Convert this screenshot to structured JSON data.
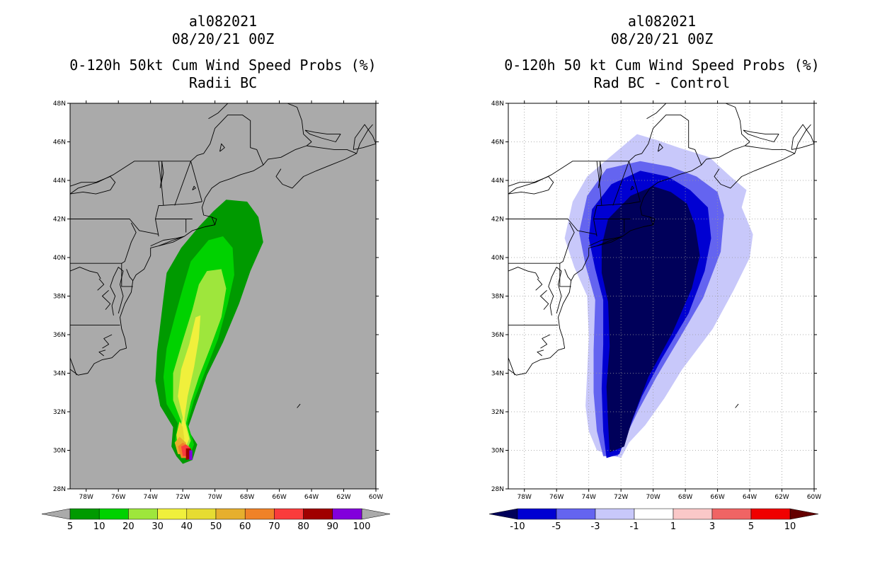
{
  "left_panel": {
    "title_lines": [
      "al082021",
      "08/20/21 00Z",
      "0-120h 50kt Cum Wind Speed Probs (%)",
      "Radii BC"
    ]
  },
  "right_panel": {
    "title_lines": [
      "al082021",
      "08/20/21 00Z",
      "0-120h 50 kt Cum Wind Speed Probs (%)",
      "Rad BC - Control"
    ]
  },
  "chart_data": [
    {
      "type": "heatmap",
      "title": "0-120h 50kt Cum Wind Speed Probs (%) Radii BC",
      "storm": "al082021",
      "init_time": "08/20/21 00Z",
      "xlim": [
        -79,
        -60
      ],
      "ylim": [
        28,
        48
      ],
      "x_ticks": [
        "78W",
        "76W",
        "74W",
        "72W",
        "70W",
        "68W",
        "66W",
        "64W",
        "62W",
        "60W"
      ],
      "y_ticks": [
        "28N",
        "30N",
        "32N",
        "34N",
        "36N",
        "38N",
        "40N",
        "42N",
        "44N",
        "46N",
        "48N"
      ],
      "grid": false,
      "background": "#aaaaaa",
      "colorbar": {
        "labels": [
          "5",
          "10",
          "20",
          "30",
          "40",
          "50",
          "60",
          "70",
          "80",
          "90",
          "100"
        ],
        "colors": [
          "#009a00",
          "#00d200",
          "#9ee63c",
          "#f0f03c",
          "#e6dc32",
          "#e6af2d",
          "#f08228",
          "#fa3c3c",
          "#a00000",
          "#8200dc"
        ],
        "low_color": "#aaaaaa",
        "high_color": "#aaaaaa"
      },
      "levels": [
        {
          "min": 5,
          "points": [
            [
              -72.4,
              29.7
            ],
            [
              -72.7,
              30.2
            ],
            [
              -72.6,
              31.2
            ],
            [
              -73.4,
              32.3
            ],
            [
              -73.7,
              33.6
            ],
            [
              -73.6,
              35.1
            ],
            [
              -73.4,
              36.5
            ],
            [
              -73.2,
              37.9
            ],
            [
              -73.0,
              39.2
            ],
            [
              -72.1,
              40.5
            ],
            [
              -71.0,
              41.6
            ],
            [
              -70.1,
              42.4
            ],
            [
              -69.3,
              43.0
            ],
            [
              -68.0,
              42.9
            ],
            [
              -67.3,
              42.1
            ],
            [
              -67.0,
              40.8
            ],
            [
              -67.8,
              39.3
            ],
            [
              -68.5,
              37.6
            ],
            [
              -69.5,
              35.6
            ],
            [
              -70.5,
              33.9
            ],
            [
              -71.2,
              32.3
            ],
            [
              -71.7,
              31.1
            ],
            [
              -71.1,
              30.3
            ],
            [
              -71.4,
              29.5
            ],
            [
              -72.0,
              29.3
            ]
          ]
        },
        {
          "min": 10,
          "points": [
            [
              -72.3,
              29.9
            ],
            [
              -72.5,
              30.4
            ],
            [
              -72.3,
              31.4
            ],
            [
              -73.0,
              32.4
            ],
            [
              -73.2,
              33.8
            ],
            [
              -73.0,
              35.3
            ],
            [
              -72.5,
              36.9
            ],
            [
              -72.0,
              38.4
            ],
            [
              -71.5,
              39.8
            ],
            [
              -70.4,
              40.9
            ],
            [
              -69.5,
              41.1
            ],
            [
              -68.9,
              40.5
            ],
            [
              -68.8,
              39.1
            ],
            [
              -69.2,
              37.6
            ],
            [
              -69.8,
              35.8
            ],
            [
              -70.6,
              34.1
            ],
            [
              -71.3,
              32.6
            ],
            [
              -71.7,
              31.4
            ],
            [
              -71.3,
              30.3
            ],
            [
              -71.6,
              29.7
            ]
          ]
        },
        {
          "min": 20,
          "points": [
            [
              -72.3,
              30.0
            ],
            [
              -72.3,
              30.6
            ],
            [
              -72.1,
              31.5
            ],
            [
              -72.6,
              32.6
            ],
            [
              -72.6,
              34.0
            ],
            [
              -72.0,
              35.7
            ],
            [
              -71.4,
              37.3
            ],
            [
              -71.0,
              38.6
            ],
            [
              -70.5,
              39.3
            ],
            [
              -69.6,
              39.4
            ],
            [
              -69.3,
              38.4
            ],
            [
              -69.6,
              36.9
            ],
            [
              -70.3,
              35.3
            ],
            [
              -71.0,
              33.8
            ],
            [
              -71.5,
              32.5
            ],
            [
              -71.8,
              31.4
            ],
            [
              -71.5,
              30.5
            ],
            [
              -71.8,
              29.9
            ]
          ]
        },
        {
          "min": 30,
          "points": [
            [
              -72.3,
              30.0
            ],
            [
              -72.2,
              30.7
            ],
            [
              -72.0,
              31.7
            ],
            [
              -72.3,
              32.8
            ],
            [
              -72.1,
              34.2
            ],
            [
              -71.6,
              35.5
            ],
            [
              -71.2,
              36.9
            ],
            [
              -70.9,
              37.0
            ],
            [
              -71.0,
              35.8
            ],
            [
              -71.3,
              34.3
            ],
            [
              -71.7,
              32.8
            ],
            [
              -71.9,
              31.6
            ],
            [
              -71.6,
              30.6
            ],
            [
              -71.9,
              30.0
            ]
          ]
        },
        {
          "min": 40,
          "points": [
            [
              -72.3,
              30.0
            ],
            [
              -72.4,
              30.8
            ],
            [
              -72.2,
              31.5
            ],
            [
              -72.0,
              31.2
            ],
            [
              -71.9,
              30.6
            ],
            [
              -72.0,
              30.1
            ]
          ]
        },
        {
          "min": 50,
          "points": [
            [
              -72.3,
              29.8
            ],
            [
              -72.5,
              30.4
            ],
            [
              -72.2,
              30.7
            ],
            [
              -71.8,
              30.4
            ],
            [
              -71.7,
              29.8
            ]
          ]
        },
        {
          "min": 60,
          "points": [
            [
              -72.1,
              29.6
            ],
            [
              -72.3,
              30.2
            ],
            [
              -72.0,
              30.4
            ],
            [
              -71.6,
              30.2
            ],
            [
              -71.6,
              29.6
            ]
          ]
        },
        {
          "min": 70,
          "points": [
            [
              -72.0,
              29.7
            ],
            [
              -72.1,
              30.2
            ],
            [
              -71.8,
              30.3
            ],
            [
              -71.5,
              30.1
            ],
            [
              -71.5,
              29.7
            ]
          ]
        },
        {
          "min": 80,
          "points": [
            [
              -71.8,
              29.5
            ],
            [
              -71.8,
              30.1
            ],
            [
              -71.5,
              30.1
            ],
            [
              -71.4,
              29.6
            ]
          ]
        },
        {
          "min": 90,
          "points": [
            [
              -71.6,
              29.5
            ],
            [
              -71.6,
              30.0
            ],
            [
              -71.4,
              30.0
            ],
            [
              -71.4,
              29.5
            ]
          ]
        }
      ]
    },
    {
      "type": "heatmap",
      "title": "0-120h 50 kt Cum Wind Speed Probs (%) Rad BC - Control",
      "storm": "al082021",
      "init_time": "08/20/21 00Z",
      "xlim": [
        -79,
        -60
      ],
      "ylim": [
        28,
        48
      ],
      "x_ticks": [
        "78W",
        "76W",
        "74W",
        "72W",
        "70W",
        "68W",
        "66W",
        "64W",
        "62W",
        "60W"
      ],
      "y_ticks": [
        "28N",
        "30N",
        "32N",
        "34N",
        "36N",
        "38N",
        "40N",
        "42N",
        "44N",
        "46N",
        "48N"
      ],
      "grid": true,
      "background": "#ffffff",
      "colorbar": {
        "labels": [
          "-10",
          "-5",
          "-3",
          "-1",
          "1",
          "3",
          "5",
          "10"
        ],
        "colors": [
          "#0000d2",
          "#6464f0",
          "#c8c8fa",
          "#ffffff",
          "#fac8c8",
          "#f06464",
          "#f00000"
        ],
        "low_color": "#00005a",
        "high_color": "#640000"
      },
      "levels": [
        {
          "min": -1,
          "points": [
            [
              -73.5,
              30.0
            ],
            [
              -74.0,
              31.0
            ],
            [
              -74.2,
              32.3
            ],
            [
              -74.1,
              34.0
            ],
            [
              -74.0,
              35.9
            ],
            [
              -74.1,
              38.0
            ],
            [
              -74.9,
              39.5
            ],
            [
              -75.5,
              41.0
            ],
            [
              -75.0,
              42.9
            ],
            [
              -74.1,
              44.2
            ],
            [
              -72.7,
              45.2
            ],
            [
              -71.0,
              46.4
            ],
            [
              -69.8,
              46.1
            ],
            [
              -68.4,
              45.7
            ],
            [
              -66.5,
              45.2
            ],
            [
              -65.2,
              44.2
            ],
            [
              -64.2,
              43.5
            ],
            [
              -64.5,
              42.6
            ],
            [
              -63.8,
              41.2
            ],
            [
              -64.0,
              40.0
            ],
            [
              -65.0,
              38.3
            ],
            [
              -66.3,
              36.3
            ],
            [
              -68.2,
              34.2
            ],
            [
              -69.3,
              32.7
            ],
            [
              -70.5,
              31.3
            ],
            [
              -71.5,
              30.4
            ],
            [
              -72.0,
              29.6
            ]
          ]
        },
        {
          "min": -3,
          "points": [
            [
              -73.1,
              29.7
            ],
            [
              -73.5,
              31.0
            ],
            [
              -73.7,
              33.0
            ],
            [
              -73.7,
              35.2
            ],
            [
              -73.6,
              37.8
            ],
            [
              -74.2,
              39.6
            ],
            [
              -74.6,
              41.3
            ],
            [
              -74.1,
              43.2
            ],
            [
              -72.9,
              44.6
            ],
            [
              -70.8,
              45.0
            ],
            [
              -68.9,
              44.7
            ],
            [
              -67.3,
              44.2
            ],
            [
              -66.0,
              43.4
            ],
            [
              -65.6,
              42.2
            ],
            [
              -65.8,
              40.3
            ],
            [
              -66.9,
              37.9
            ],
            [
              -68.3,
              35.9
            ],
            [
              -69.8,
              33.8
            ],
            [
              -70.9,
              32.1
            ],
            [
              -71.6,
              30.9
            ],
            [
              -72.2,
              29.7
            ]
          ]
        },
        {
          "min": -5,
          "points": [
            [
              -72.9,
              29.6
            ],
            [
              -73.1,
              31.0
            ],
            [
              -73.2,
              33.2
            ],
            [
              -73.1,
              35.5
            ],
            [
              -73.1,
              37.8
            ],
            [
              -73.6,
              39.4
            ],
            [
              -74.0,
              41.0
            ],
            [
              -73.8,
              42.5
            ],
            [
              -72.6,
              43.8
            ],
            [
              -70.8,
              44.5
            ],
            [
              -69.1,
              44.2
            ],
            [
              -67.7,
              43.5
            ],
            [
              -66.6,
              42.6
            ],
            [
              -66.4,
              41.0
            ],
            [
              -66.8,
              39.3
            ],
            [
              -67.8,
              37.1
            ],
            [
              -69.5,
              34.7
            ],
            [
              -70.7,
              32.8
            ],
            [
              -71.5,
              31.1
            ],
            [
              -72.1,
              29.8
            ]
          ]
        },
        {
          "min": -10,
          "points": [
            [
              -72.7,
              29.9
            ],
            [
              -72.8,
              31.4
            ],
            [
              -72.9,
              33.3
            ],
            [
              -72.7,
              35.4
            ],
            [
              -72.8,
              37.7
            ],
            [
              -73.2,
              39.2
            ],
            [
              -73.2,
              40.6
            ],
            [
              -72.8,
              42.0
            ],
            [
              -71.4,
              43.2
            ],
            [
              -70.0,
              43.7
            ],
            [
              -68.9,
              43.4
            ],
            [
              -67.9,
              42.8
            ],
            [
              -67.4,
              41.7
            ],
            [
              -67.1,
              40.1
            ],
            [
              -67.6,
              38.4
            ],
            [
              -68.8,
              36.1
            ],
            [
              -70.3,
              33.8
            ],
            [
              -71.3,
              31.6
            ],
            [
              -71.8,
              30.2
            ]
          ]
        }
      ]
    }
  ]
}
